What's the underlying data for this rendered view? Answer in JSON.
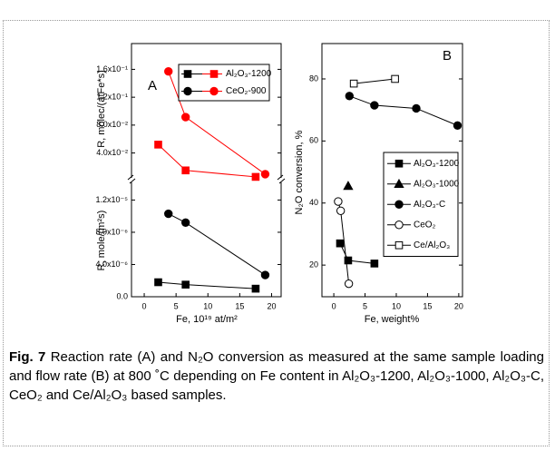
{
  "caption": {
    "label": "Fig. 7",
    "text": "Reaction rate (A) and N₂O conversion as measured at the same sample loading and flow rate (B) at 800 ˚C depending on Fe content in Al₂O₃-1200, Al₂O₃-1000, Al₂O₃-C, CeO₂ and Ce/Al₂O₃ based samples."
  },
  "chart_data": [
    {
      "type": "scatter-line",
      "panel_label": "A",
      "broken_axis": true,
      "xlabel": "Fe, 10¹⁹ at/m²",
      "ylabel": "R, mole/(m²s)",
      "y2label": "R, molec/(atFe*s)",
      "xlim": [
        -2,
        21.5
      ],
      "xticks": [
        0,
        5,
        10,
        15,
        20
      ],
      "ylim": [
        0,
        1.43e-05
      ],
      "yticks": [
        {
          "value": 0,
          "label": "0.0"
        },
        {
          "value": 4e-06,
          "label": "4.0x10⁻⁶"
        },
        {
          "value": 8e-06,
          "label": "8.0x10⁻⁶"
        },
        {
          "value": 1.2e-05,
          "label": "1.2x10⁻⁵"
        }
      ],
      "y2lim": [
        0.003,
        0.197
      ],
      "y2ticks": [
        {
          "value": 0.04,
          "label": "4.0x10⁻²"
        },
        {
          "value": 0.08,
          "label": "8.0x10⁻²"
        },
        {
          "value": 0.12,
          "label": "1.2x10⁻¹"
        },
        {
          "value": 0.16,
          "label": "1.6x10⁻¹"
        }
      ],
      "series": [
        {
          "name": "Al₂O₃-1200",
          "marker": "square",
          "filled": true,
          "color": "#000000",
          "y2_color": "#ff0000",
          "x": [
            2.2,
            6.5,
            17.5
          ],
          "values": [
            1.8e-06,
            1.5e-06,
            1e-06
          ],
          "y2_values": [
            0.052,
            0.015,
            0.0057
          ]
        },
        {
          "name": "CeO₂-900",
          "marker": "circle",
          "filled": true,
          "color": "#000000",
          "y2_color": "#ff0000",
          "x": [
            3.8,
            6.5,
            19
          ],
          "values": [
            1.03e-05,
            9.2e-06,
            2.7e-06
          ],
          "y2_values": [
            0.157,
            0.0915,
            0.0096
          ]
        }
      ]
    },
    {
      "type": "scatter-line",
      "panel_label": "B",
      "xlabel": "Fe, weight%",
      "ylabel": "N₂O conversion, %",
      "xlim": [
        -1.9,
        20.6
      ],
      "xticks": [
        0,
        5,
        10,
        15,
        20
      ],
      "ylim": [
        9.8,
        91.4
      ],
      "yticks": [
        20,
        40,
        60,
        80
      ],
      "series": [
        {
          "name": "Al₂O₃-1200",
          "marker": "square",
          "filled": true,
          "color": "#000000",
          "x": [
            1.0,
            2.3,
            6.5
          ],
          "values": [
            27,
            21.5,
            20.5
          ]
        },
        {
          "name": "Al₂O₃-1000",
          "marker": "triangle",
          "filled": true,
          "color": "#000000",
          "x": [
            2.3
          ],
          "values": [
            45.5
          ]
        },
        {
          "name": "Al₂O₃-C",
          "marker": "circle",
          "filled": true,
          "color": "#000000",
          "x": [
            2.5,
            6.5,
            13.2,
            19.8
          ],
          "values": [
            74.5,
            71.5,
            70.5,
            65
          ]
        },
        {
          "name": "CeO₂",
          "marker": "circle",
          "filled": false,
          "color": "#000000",
          "x": [
            0.7,
            1.1,
            2.4
          ],
          "values": [
            40.5,
            37.5,
            14
          ]
        },
        {
          "name": "Ce/Al₂O₃",
          "marker": "square",
          "filled": false,
          "color": "#000000",
          "x": [
            3.2,
            9.8
          ],
          "values": [
            78.5,
            80
          ]
        }
      ]
    }
  ]
}
